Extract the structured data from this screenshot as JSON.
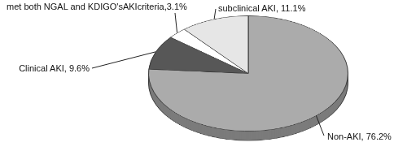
{
  "chart_data": {
    "type": "pie",
    "categories": [
      "Non-AKI",
      "Clinical AKI",
      "met both NGAL and KDIGO'sAKIcriteria",
      "subclinical AKI"
    ],
    "values": [
      76.2,
      9.6,
      3.1,
      11.1
    ],
    "value_labels": [
      "Non-AKI, 76.2%",
      "Clinical AKI, 9.6%",
      "met both NGAL and KDIGO'sAKIcriteria,3.1%",
      "subclinical AKI, 11.1%"
    ],
    "colors": [
      "#ababab",
      "#575757",
      "#ffffff",
      "#e6e6e6"
    ],
    "data_labels": true
  }
}
